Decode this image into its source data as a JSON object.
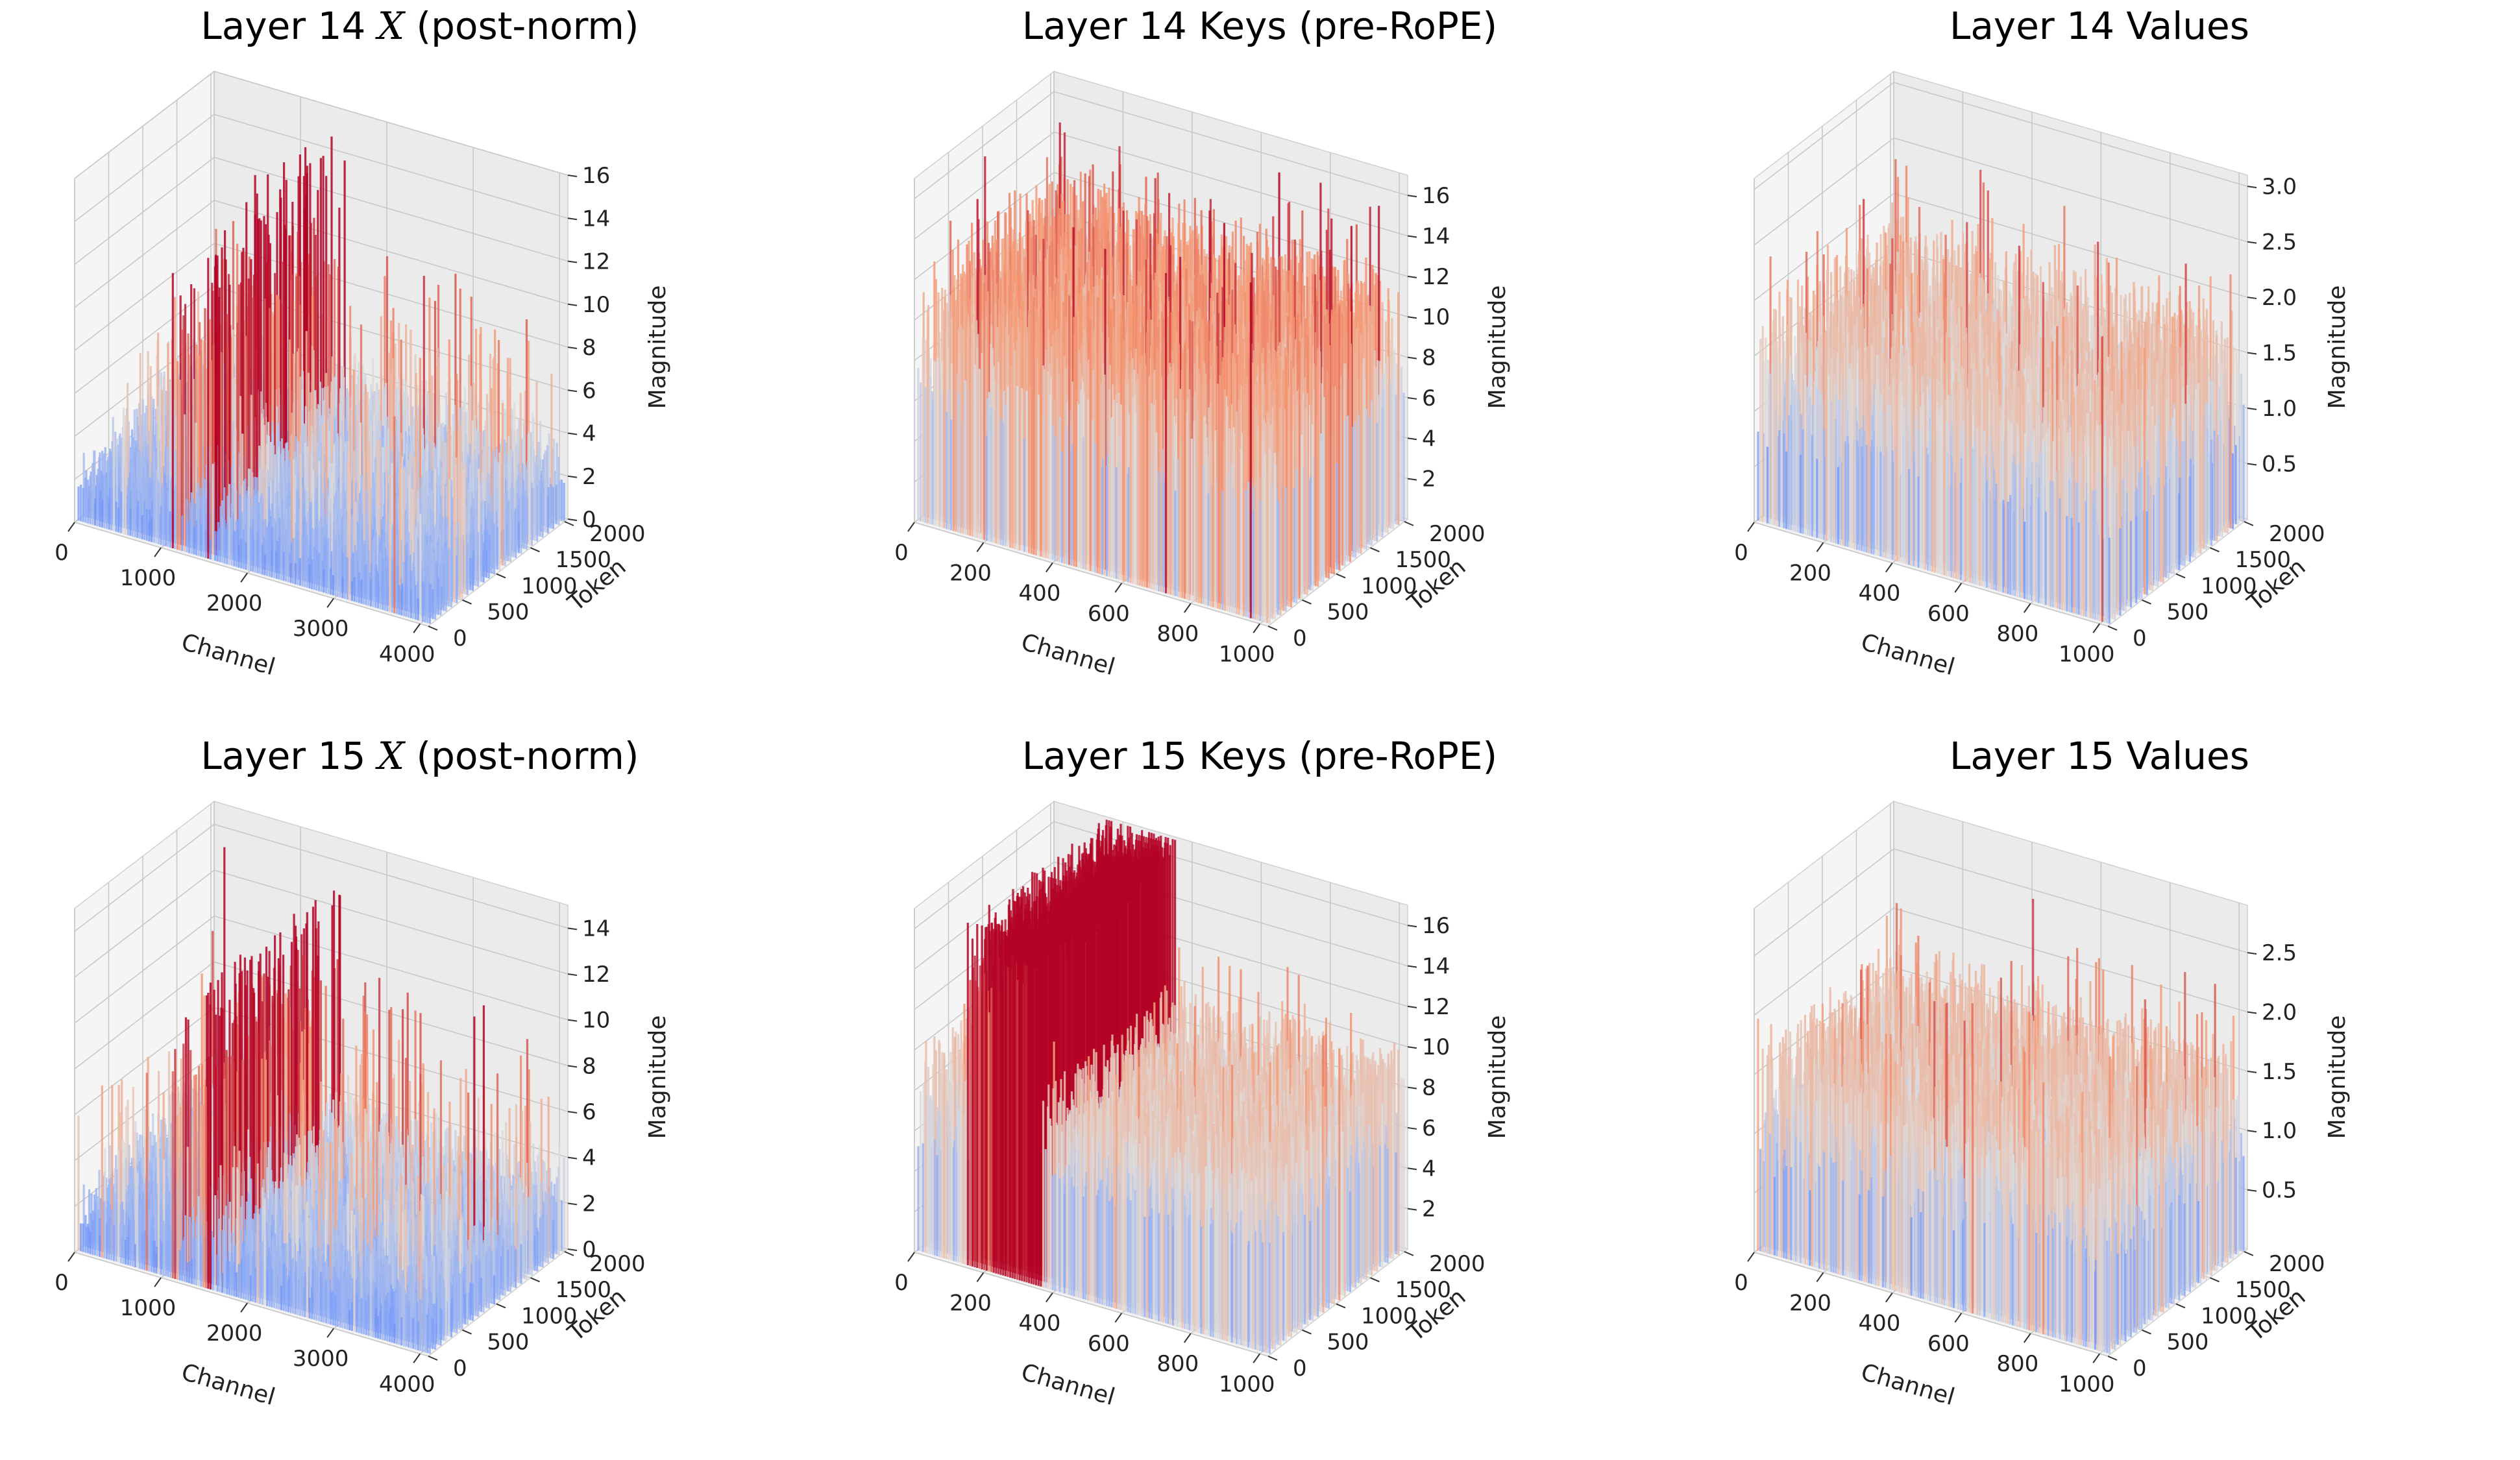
{
  "chart_data": [
    {
      "type": "3d-surface",
      "title_prefix": "Layer 14 ",
      "title_math": "X",
      "title_suffix": " (post-norm)",
      "xlabel": "Channel",
      "ylabel": "Token",
      "zlabel": "Magnitude",
      "xticks": [
        0,
        1000,
        2000,
        3000,
        4000
      ],
      "yticks": [
        0,
        500,
        1000,
        1500,
        2000
      ],
      "zticks": [
        0,
        2,
        4,
        6,
        8,
        10,
        12,
        14,
        16
      ],
      "xlim": [
        0,
        4096
      ],
      "ylim": [
        0,
        2048
      ],
      "zlim": [
        0,
        16
      ],
      "grid": true,
      "colormap": "coolwarm",
      "peaks": [
        {
          "channel": 1500,
          "magnitude": 16
        },
        {
          "channel": 1150,
          "magnitude": 13
        }
      ],
      "pattern": "sparse-spikes"
    },
    {
      "type": "3d-surface",
      "title_prefix": "Layer 14 Keys (pre-RoPE)",
      "title_math": "",
      "title_suffix": "",
      "xlabel": "Channel",
      "ylabel": "Token",
      "zlabel": "Magnitude",
      "xticks": [
        0,
        200,
        400,
        600,
        800,
        1000
      ],
      "yticks": [
        0,
        500,
        1000,
        1500,
        2000
      ],
      "zticks": [
        2,
        4,
        6,
        8,
        10,
        12,
        14,
        16
      ],
      "xlim": [
        0,
        1024
      ],
      "ylim": [
        0,
        2048
      ],
      "zlim": [
        0,
        17
      ],
      "grid": true,
      "colormap": "coolwarm",
      "peaks": [
        {
          "channel": 160,
          "magnitude": 14
        },
        {
          "channel": 930,
          "magnitude": 12
        }
      ],
      "pattern": "dense-keys"
    },
    {
      "type": "3d-surface",
      "title_prefix": "Layer 14 Values",
      "title_math": "",
      "title_suffix": "",
      "xlabel": "Channel",
      "ylabel": "Token",
      "zlabel": "Magnitude",
      "xticks": [
        0,
        200,
        400,
        600,
        800,
        1000
      ],
      "yticks": [
        0,
        500,
        1000,
        1500,
        2000
      ],
      "zticks": [
        0.5,
        1.0,
        1.5,
        2.0,
        2.5,
        3.0
      ],
      "zticks_text": [
        "0.5",
        "1.0",
        "1.5",
        "2.0",
        "2.5",
        "3.0"
      ],
      "xlim": [
        0,
        1024
      ],
      "ylim": [
        0,
        2048
      ],
      "zlim": [
        0,
        3.1
      ],
      "grid": true,
      "colormap": "coolwarm",
      "peaks": [
        {
          "channel": 930,
          "magnitude": 2.2
        },
        {
          "channel": 620,
          "magnitude": 1.8
        }
      ],
      "pattern": "values"
    },
    {
      "type": "3d-surface",
      "title_prefix": "Layer 15 ",
      "title_math": "X",
      "title_suffix": " (post-norm)",
      "xlabel": "Channel",
      "ylabel": "Token",
      "zlabel": "Magnitude",
      "xticks": [
        0,
        1000,
        2000,
        3000,
        4000
      ],
      "yticks": [
        0,
        500,
        1000,
        1500,
        2000
      ],
      "zticks": [
        0,
        2,
        4,
        6,
        8,
        10,
        12,
        14
      ],
      "xlim": [
        0,
        4096
      ],
      "ylim": [
        0,
        2048
      ],
      "zlim": [
        0,
        15
      ],
      "grid": true,
      "colormap": "coolwarm",
      "peaks": [
        {
          "channel": 1500,
          "magnitude": 14
        },
        {
          "channel": 1150,
          "magnitude": 12
        }
      ],
      "pattern": "sparse-spikes"
    },
    {
      "type": "3d-surface",
      "title_prefix": "Layer 15 Keys (pre-RoPE)",
      "title_math": "",
      "title_suffix": "",
      "xlabel": "Channel",
      "ylabel": "Token",
      "zlabel": "Magnitude",
      "xticks": [
        0,
        200,
        400,
        600,
        800,
        1000
      ],
      "yticks": [
        0,
        500,
        1000,
        1500,
        2000
      ],
      "zticks": [
        2,
        4,
        6,
        8,
        10,
        12,
        14,
        16
      ],
      "xlim": [
        0,
        1024
      ],
      "ylim": [
        0,
        2048
      ],
      "zlim": [
        0,
        17
      ],
      "grid": true,
      "colormap": "coolwarm",
      "peaks": [
        {
          "channel": 330,
          "magnitude": 16
        },
        {
          "channel": 180,
          "magnitude": 12
        }
      ],
      "pattern": "keys-band"
    },
    {
      "type": "3d-surface",
      "title_prefix": "Layer 15 Values",
      "title_math": "",
      "title_suffix": "",
      "xlabel": "Channel",
      "ylabel": "Token",
      "zlabel": "Magnitude",
      "xticks": [
        0,
        200,
        400,
        600,
        800,
        1000
      ],
      "yticks": [
        0,
        500,
        1000,
        1500,
        2000
      ],
      "zticks": [
        0.5,
        1.0,
        1.5,
        2.0,
        2.5
      ],
      "zticks_text": [
        "0.5",
        "1.0",
        "1.5",
        "2.0",
        "2.5"
      ],
      "xlim": [
        0,
        1024
      ],
      "ylim": [
        0,
        2048
      ],
      "zlim": [
        0,
        2.9
      ],
      "grid": true,
      "colormap": "coolwarm",
      "peaks": [
        {
          "channel": 560,
          "magnitude": 1.8
        },
        {
          "channel": 700,
          "magnitude": 1.6
        }
      ],
      "pattern": "values"
    }
  ]
}
